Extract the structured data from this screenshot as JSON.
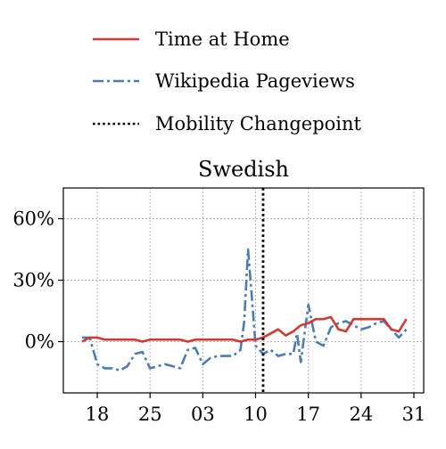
{
  "chart_data": {
    "type": "line",
    "title": "Swedish",
    "xlabel": "",
    "ylabel": "",
    "x_tick_labels": [
      "18",
      "25",
      "03",
      "10",
      "17",
      "24",
      "31"
    ],
    "x_tick_positions": [
      18,
      25,
      32,
      39,
      46,
      53,
      60
    ],
    "xlim": [
      13.5,
      61.3
    ],
    "ylim": [
      -25,
      75
    ],
    "y_ticks": [
      0,
      30,
      60
    ],
    "y_tick_labels": [
      "0%",
      "30%",
      "60%"
    ],
    "grid": true,
    "legend": {
      "placement": "above",
      "entries": [
        "Time at Home",
        "Wikipedia Pageviews",
        "Mobility Changepoint"
      ]
    },
    "colors": {
      "time_at_home": "#d03a34",
      "pageviews": "#4a7db3",
      "changepoint": "#000000"
    },
    "changepoint_x": 40,
    "series": [
      {
        "name": "Time at Home",
        "style": "solid",
        "x": [
          16,
          17,
          18,
          19,
          20,
          21,
          22,
          23,
          24,
          25,
          26,
          27,
          28,
          29,
          30,
          31,
          32,
          33,
          34,
          35,
          36,
          37,
          38,
          39,
          40,
          41,
          42,
          43,
          44,
          45,
          46,
          47,
          48,
          49,
          50,
          51,
          52,
          53,
          54,
          55,
          56,
          57,
          58,
          59
        ],
        "y": [
          0,
          2,
          2,
          1,
          1,
          1,
          1,
          1,
          0,
          1,
          1,
          1,
          1,
          1,
          0,
          1,
          1,
          1,
          1,
          1,
          1,
          0,
          1,
          1,
          2,
          4,
          6,
          3,
          5,
          8,
          9,
          11,
          11,
          12,
          6,
          5,
          11,
          11,
          11,
          11,
          11,
          6,
          5,
          11
        ]
      },
      {
        "name": "Wikipedia Pageviews",
        "style": "dashdot",
        "x": [
          16,
          17,
          18,
          19,
          20,
          21,
          22,
          23,
          24,
          25,
          26,
          27,
          28,
          29,
          30,
          31,
          32,
          33,
          34,
          35,
          36,
          37,
          37.5,
          38,
          38.5,
          39,
          40,
          41,
          42,
          43,
          44,
          44.5,
          45,
          46,
          47,
          48,
          49,
          50,
          51,
          52,
          53,
          54,
          55,
          56,
          57,
          58,
          59
        ],
        "y": [
          2,
          2,
          -11,
          -13,
          -13,
          -14,
          -12,
          -6,
          -5,
          -13,
          -12,
          -11,
          -12,
          -13,
          -4,
          -3,
          -11,
          -8,
          -7,
          -7,
          -7,
          -4,
          10,
          45,
          22,
          -2,
          -6,
          -4,
          -7,
          -6,
          -6,
          4,
          -10,
          18,
          0,
          -2,
          7,
          9,
          10,
          8,
          6,
          7,
          9,
          10,
          6,
          2,
          6
        ]
      }
    ]
  }
}
